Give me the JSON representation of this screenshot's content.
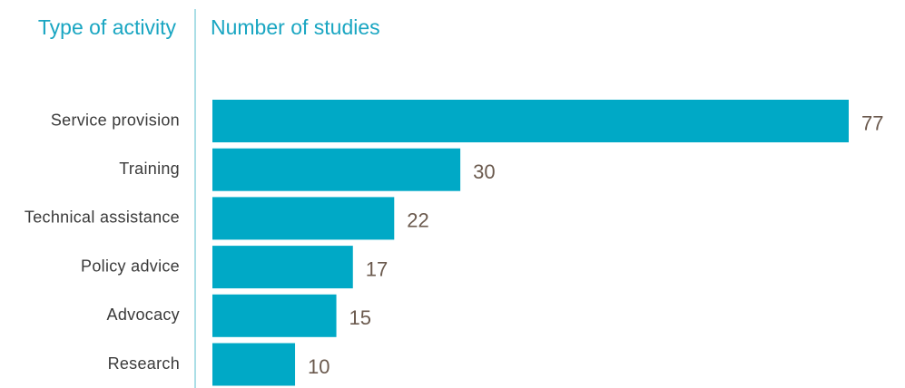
{
  "chart_data": {
    "type": "bar",
    "orientation": "horizontal",
    "category_header": "Type of activity",
    "value_header": "Number of studies",
    "categories": [
      "Service provision",
      "Training",
      "Technical assistance",
      "Policy advice",
      "Advocacy",
      "Research"
    ],
    "values": [
      77,
      30,
      22,
      17,
      15,
      10
    ],
    "color": "#00a9c6"
  }
}
